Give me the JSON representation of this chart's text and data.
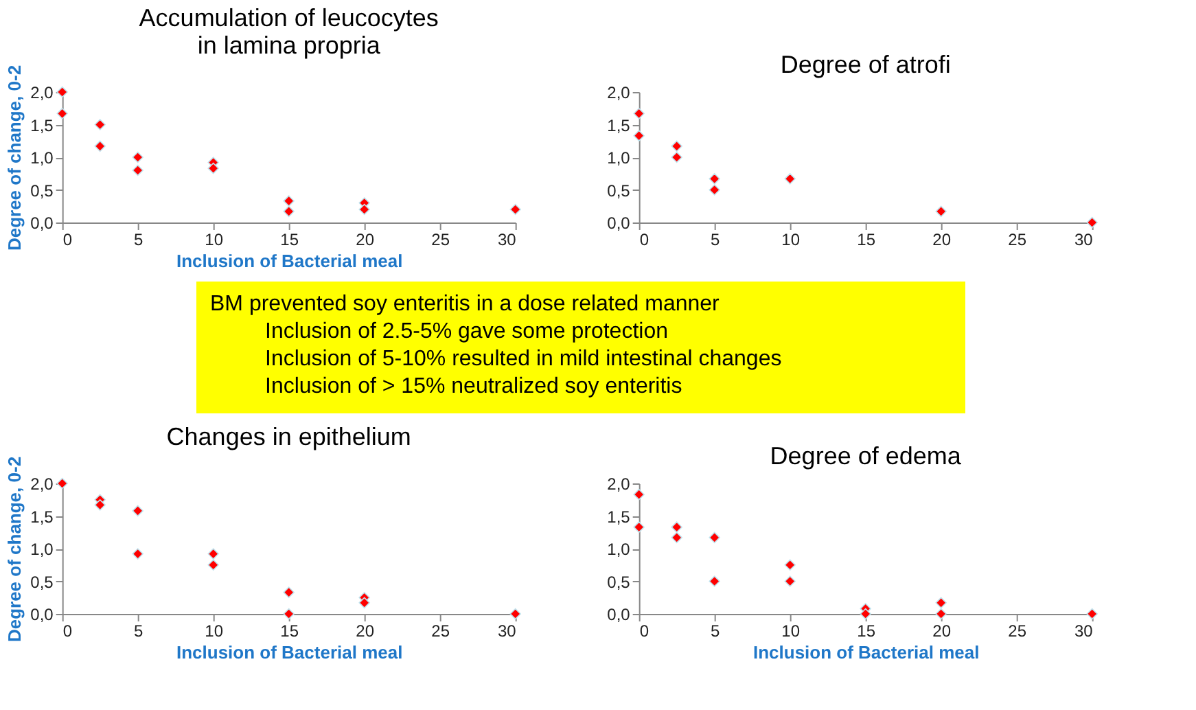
{
  "chart_data": [
    {
      "type": "scatter",
      "title": "Accumulation of leucocytes\nin lamina propria",
      "ylabel": "Degree of change, 0-2",
      "xlabel": "Inclusion of Bacterial meal",
      "color": "#ff0000",
      "marker": "diamond",
      "grid": false,
      "x": [
        0,
        0,
        2.5,
        2.5,
        5,
        5,
        10,
        10,
        15,
        15,
        20,
        20,
        30
      ],
      "values": [
        2.0,
        1.67,
        1.5,
        1.17,
        1.0,
        0.8,
        0.92,
        0.83,
        0.33,
        0.17,
        0.3,
        0.2,
        0.2
      ],
      "xlim": [
        0,
        30
      ],
      "xticks": [
        0,
        5,
        10,
        15,
        20,
        25,
        30
      ],
      "ylim": [
        0,
        2
      ],
      "yticks": [
        {
          "value": 0,
          "label": "0,0"
        },
        {
          "value": 0.5,
          "label": "0,5"
        },
        {
          "value": 1,
          "label": "1,0"
        },
        {
          "value": 1.5,
          "label": "1,5"
        },
        {
          "value": 2,
          "label": "2,0"
        }
      ]
    },
    {
      "type": "scatter",
      "title": "Degree of atrofi",
      "color": "#ff0000",
      "marker": "diamond",
      "grid": false,
      "x": [
        0,
        0,
        2.5,
        2.5,
        5,
        5,
        10,
        20,
        30
      ],
      "values": [
        1.67,
        1.33,
        1.17,
        1.0,
        0.67,
        0.5,
        0.67,
        0.17,
        0
      ],
      "xlim": [
        0,
        30
      ],
      "xticks": [
        0,
        5,
        10,
        15,
        20,
        25,
        30
      ],
      "ylim": [
        0,
        2
      ],
      "yticks": [
        {
          "value": 0,
          "label": "0,0"
        },
        {
          "value": 0.5,
          "label": "0,5"
        },
        {
          "value": 1,
          "label": "1,0"
        },
        {
          "value": 1.5,
          "label": "1,5"
        },
        {
          "value": 2,
          "label": "2,0"
        }
      ]
    },
    {
      "type": "other",
      "annotations": [
        "BM prevented soy enteritis in a dose related manner",
        "Inclusion of 2.5-5% gave some protection",
        "Inclusion of 5-10% resulted in mild intestinal changes",
        "Inclusion of > 15% neutralized soy enteritis"
      ]
    },
    {
      "type": "scatter",
      "title": "Changes in epithelium",
      "ylabel": "Degree of change, 0-2",
      "xlabel": "Inclusion of Bacterial meal",
      "color": "#ff0000",
      "marker": "diamond",
      "grid": false,
      "x": [
        0,
        2.5,
        2.5,
        5,
        5,
        10,
        10,
        15,
        15,
        20,
        20,
        30
      ],
      "values": [
        2.0,
        1.75,
        1.67,
        1.58,
        0.92,
        0.92,
        0.75,
        0.33,
        0,
        0.25,
        0.17,
        0
      ],
      "xlim": [
        0,
        30
      ],
      "xticks": [
        0,
        5,
        10,
        15,
        20,
        25,
        30
      ],
      "ylim": [
        0,
        2
      ],
      "yticks": [
        {
          "value": 0,
          "label": "0,0"
        },
        {
          "value": 0.5,
          "label": "0,5"
        },
        {
          "value": 1,
          "label": "1,0"
        },
        {
          "value": 1.5,
          "label": "1,5"
        },
        {
          "value": 2,
          "label": "2,0"
        }
      ]
    },
    {
      "type": "scatter",
      "title": "Degree of edema",
      "xlabel": "Inclusion of Bacterial meal",
      "color": "#ff0000",
      "marker": "diamond",
      "grid": false,
      "x": [
        0,
        0,
        2.5,
        2.5,
        5,
        5,
        10,
        10,
        15,
        15,
        20,
        20,
        30
      ],
      "values": [
        1.83,
        1.33,
        1.33,
        1.17,
        1.17,
        0.5,
        0.75,
        0.5,
        0.08,
        0,
        0.17,
        0,
        0
      ],
      "xlim": [
        0,
        30
      ],
      "xticks": [
        0,
        5,
        10,
        15,
        20,
        25,
        30
      ],
      "ylim": [
        0,
        2
      ],
      "yticks": [
        {
          "value": 0,
          "label": "0,0"
        },
        {
          "value": 0.5,
          "label": "0,5"
        },
        {
          "value": 1,
          "label": "1,0"
        },
        {
          "value": 1.5,
          "label": "1,5"
        },
        {
          "value": 2,
          "label": "2,0"
        }
      ]
    }
  ]
}
